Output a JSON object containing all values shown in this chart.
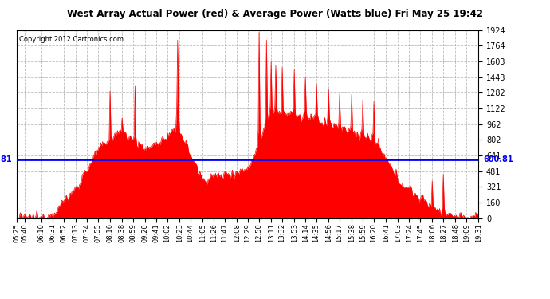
{
  "title": "West Array Actual Power (red) & Average Power (Watts blue) Fri May 25 19:42",
  "copyright": "Copyright 2012 Cartronics.com",
  "avg_power": 600.81,
  "y_max": 1923.8,
  "y_min": 0.0,
  "yticks": [
    0.0,
    160.3,
    320.6,
    480.9,
    641.3,
    801.6,
    961.9,
    1122.2,
    1282.5,
    1442.8,
    1603.2,
    1763.5,
    1923.8
  ],
  "bg_color": "#ffffff",
  "fill_color": "#ff0000",
  "line_color": "#0000ff",
  "grid_color": "#aaaaaa",
  "title_color": "#000000",
  "x_labels": [
    "05:25",
    "05:40",
    "06:10",
    "06:31",
    "06:52",
    "07:13",
    "07:34",
    "07:55",
    "08:16",
    "08:38",
    "08:59",
    "09:20",
    "09:41",
    "10:02",
    "10:23",
    "10:44",
    "11:05",
    "11:26",
    "11:47",
    "12:08",
    "12:29",
    "12:50",
    "13:11",
    "13:32",
    "13:53",
    "14:14",
    "14:35",
    "14:56",
    "15:17",
    "15:38",
    "15:59",
    "16:20",
    "16:41",
    "17:03",
    "17:24",
    "17:45",
    "18:06",
    "18:27",
    "18:48",
    "19:09",
    "19:31"
  ]
}
